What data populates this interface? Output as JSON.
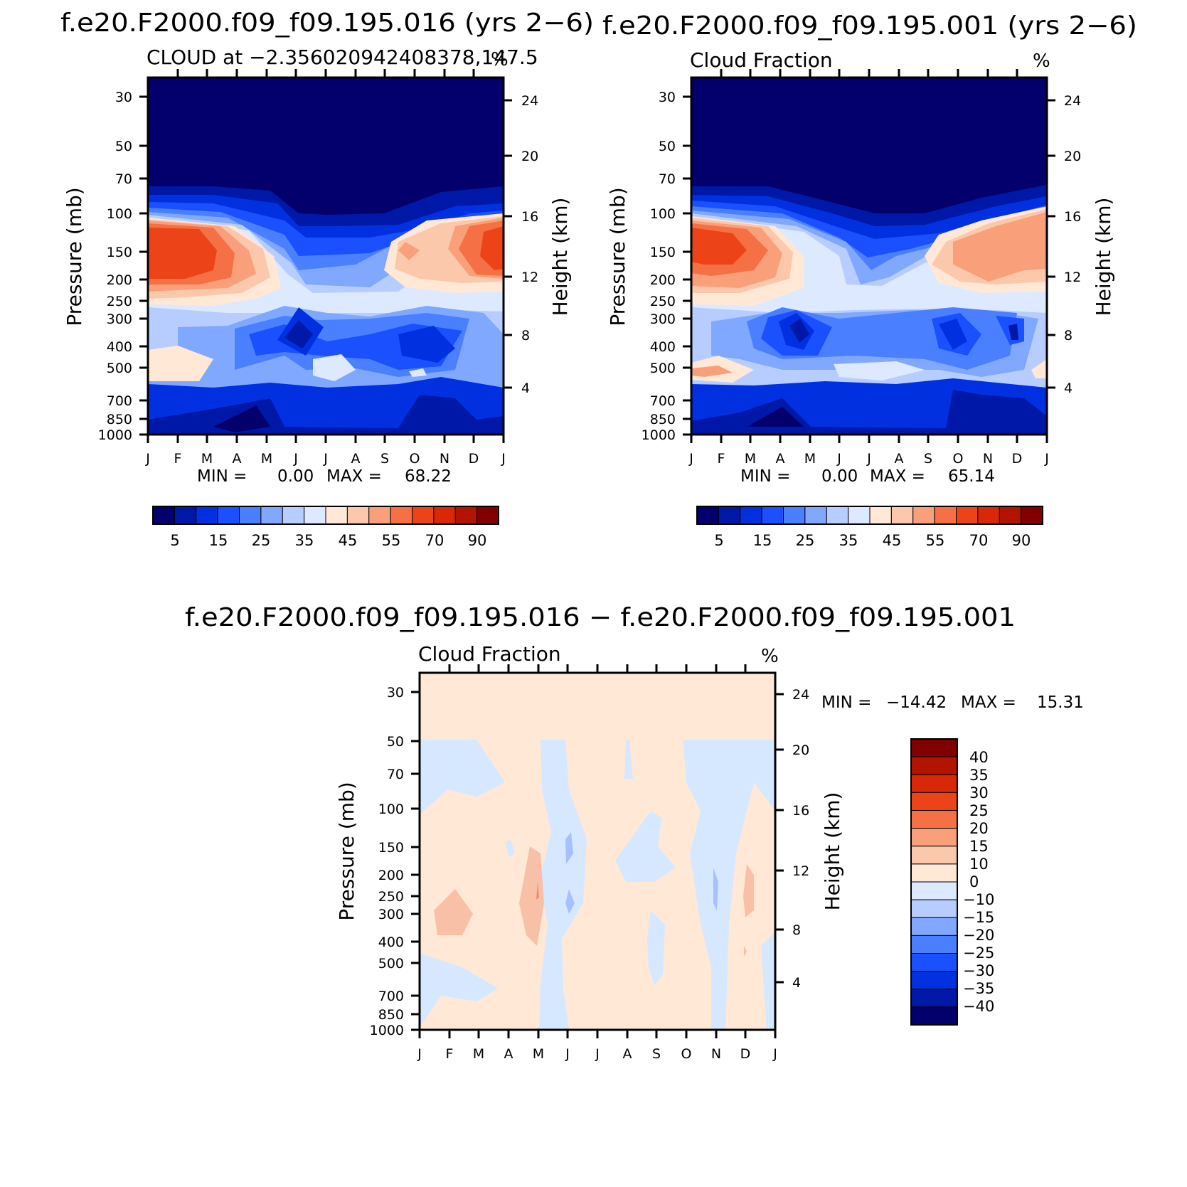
{
  "chart_data": [
    {
      "type": "heatmap",
      "title": "f.e20.F2000.f09_f09.195.016 (yrs 2−6)",
      "subtitle_left": "CLOUD at −2.356020942408378,147.5",
      "subtitle_right": "%",
      "ylabel": "Pressure (mb)",
      "ylabel_right": "Height (km)",
      "x_ticks": [
        "J",
        "F",
        "M",
        "A",
        "M",
        "J",
        "J",
        "A",
        "S",
        "O",
        "N",
        "D",
        "J"
      ],
      "y_ticks": [
        "30",
        "50",
        "70",
        "100",
        "150",
        "200",
        "250",
        "300",
        "400",
        "500",
        "700",
        "850",
        "1000"
      ],
      "y_right_ticks": [
        "24",
        "20",
        "16",
        "12",
        "8",
        "4"
      ],
      "stats": {
        "min_label": "MIN =",
        "min": "0.00",
        "max_label": "MAX =",
        "max": "68.22"
      },
      "colorbar_labels": [
        "5",
        "15",
        "25",
        "35",
        "45",
        "55",
        "70",
        "90"
      ],
      "regions": {
        "upper_red_max": {
          "month": 1.2,
          "pressure_mb": 160,
          "value": 68.22
        },
        "upper_red_2": {
          "month": 11.6,
          "pressure_mb": 150,
          "value": 60
        }
      }
    },
    {
      "type": "heatmap",
      "title": "f.e20.F2000.f09_f09.195.001 (yrs 2−6)",
      "subtitle_left": "Cloud Fraction",
      "subtitle_right": "%",
      "ylabel": "Pressure (mb)",
      "ylabel_right": "Height (km)",
      "x_ticks": [
        "J",
        "F",
        "M",
        "A",
        "M",
        "J",
        "J",
        "A",
        "S",
        "O",
        "N",
        "D",
        "J"
      ],
      "y_ticks": [
        "30",
        "50",
        "70",
        "100",
        "150",
        "200",
        "250",
        "300",
        "400",
        "500",
        "700",
        "850",
        "1000"
      ],
      "y_right_ticks": [
        "24",
        "20",
        "16",
        "12",
        "8",
        "4"
      ],
      "stats": {
        "min_label": "MIN =",
        "min": "0.00",
        "max_label": "MAX =",
        "max": "65.14"
      },
      "colorbar_labels": [
        "5",
        "15",
        "25",
        "35",
        "45",
        "55",
        "70",
        "90"
      ]
    },
    {
      "type": "heatmap",
      "title": "f.e20.F2000.f09_f09.195.016 − f.e20.F2000.f09_f09.195.001",
      "subtitle_left": "Cloud Fraction",
      "subtitle_right": "%",
      "ylabel": "Pressure (mb)",
      "ylabel_right": "Height (km)",
      "x_ticks": [
        "J",
        "F",
        "M",
        "A",
        "M",
        "J",
        "J",
        "A",
        "S",
        "O",
        "N",
        "D",
        "J"
      ],
      "y_ticks": [
        "30",
        "50",
        "70",
        "100",
        "150",
        "200",
        "250",
        "300",
        "400",
        "500",
        "700",
        "850",
        "1000"
      ],
      "y_right_ticks": [
        "24",
        "20",
        "16",
        "12",
        "8",
        "4"
      ],
      "stats": {
        "min_label": "MIN =",
        "min": "−14.42",
        "max_label": "MAX =",
        "max": "15.31"
      },
      "colorbar_labels": [
        "40",
        "35",
        "30",
        "25",
        "20",
        "15",
        "10",
        "0",
        "−10",
        "−15",
        "−20",
        "−25",
        "−30",
        "−35",
        "−40"
      ]
    }
  ],
  "colors": {
    "scale": [
      "#03006e",
      "#0018a8",
      "#0030e0",
      "#1a50ff",
      "#4a80ff",
      "#80a8ff",
      "#b8cdff",
      "#dde9ff",
      "#ffe8d6",
      "#fcc8ac",
      "#f9a07a",
      "#f57044",
      "#ec4418",
      "#d82808",
      "#b21400",
      "#800000"
    ],
    "diff_positive": "#ffe8d6",
    "diff_negative": "#d6e8ff",
    "diff_pos2": "#f9c0a8",
    "diff_pos3": "#f08c68",
    "diff_neg2": "#a8c0ff",
    "diff_neg3": "#6a90ff"
  }
}
